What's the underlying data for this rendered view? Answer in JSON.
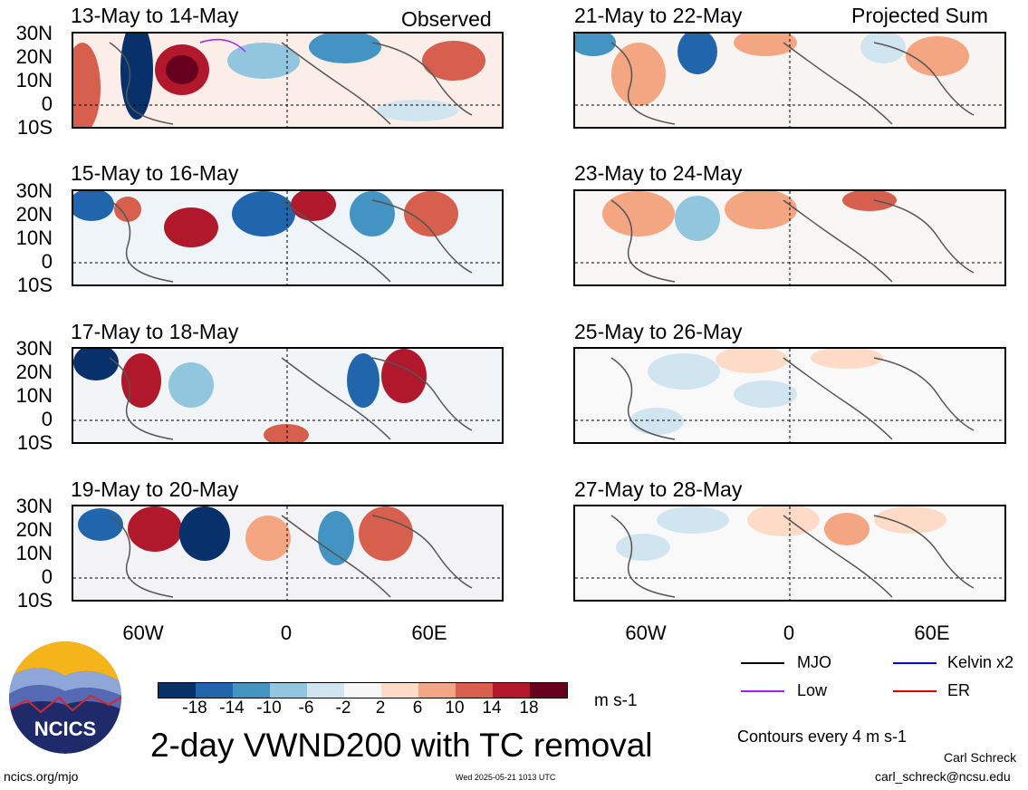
{
  "column_labels": {
    "left": "Observed",
    "right": "Projected Sum"
  },
  "panels": [
    {
      "title": "13-May to 14-May"
    },
    {
      "title": "15-May to 16-May"
    },
    {
      "title": "17-May to 18-May"
    },
    {
      "title": "19-May to 20-May"
    },
    {
      "title": "21-May to 22-May"
    },
    {
      "title": "23-May to 24-May"
    },
    {
      "title": "25-May to 26-May"
    },
    {
      "title": "27-May to 28-May"
    }
  ],
  "lat_labels": [
    "30N",
    "20N",
    "10N",
    "0",
    "10S"
  ],
  "lon_labels": [
    "60W",
    "0",
    "60E"
  ],
  "colorbar": {
    "labels": [
      "-18",
      "-14",
      "-10",
      "-6",
      "-2",
      "2",
      "6",
      "10",
      "14",
      "18"
    ],
    "colors": [
      "#08306b",
      "#2166ac",
      "#4393c3",
      "#92c5de",
      "#d1e5f0",
      "#f7f7f7",
      "#fddbc7",
      "#f4a582",
      "#d6604d",
      "#b2182b",
      "#67001f"
    ],
    "unit": "m s-1"
  },
  "title": "2-day VWND200 with TC removal",
  "legend": [
    {
      "label": "MJO",
      "color": "#000000"
    },
    {
      "label": "Kelvin x2",
      "color": "#0000ff"
    },
    {
      "label": "Low",
      "color": "#a020f0"
    },
    {
      "label": "ER",
      "color": "#e00000"
    }
  ],
  "contour_note": "Contours every 4 m s-1",
  "author": "Carl Schreck",
  "email": "carl_schreck@ncsu.edu",
  "url": "ncics.org/mjo",
  "timestamp": "Wed 2025-05-21 1013 UTC",
  "logo_text": "NCICS",
  "icons": {
    "logo": "ncics-logo-icon"
  }
}
